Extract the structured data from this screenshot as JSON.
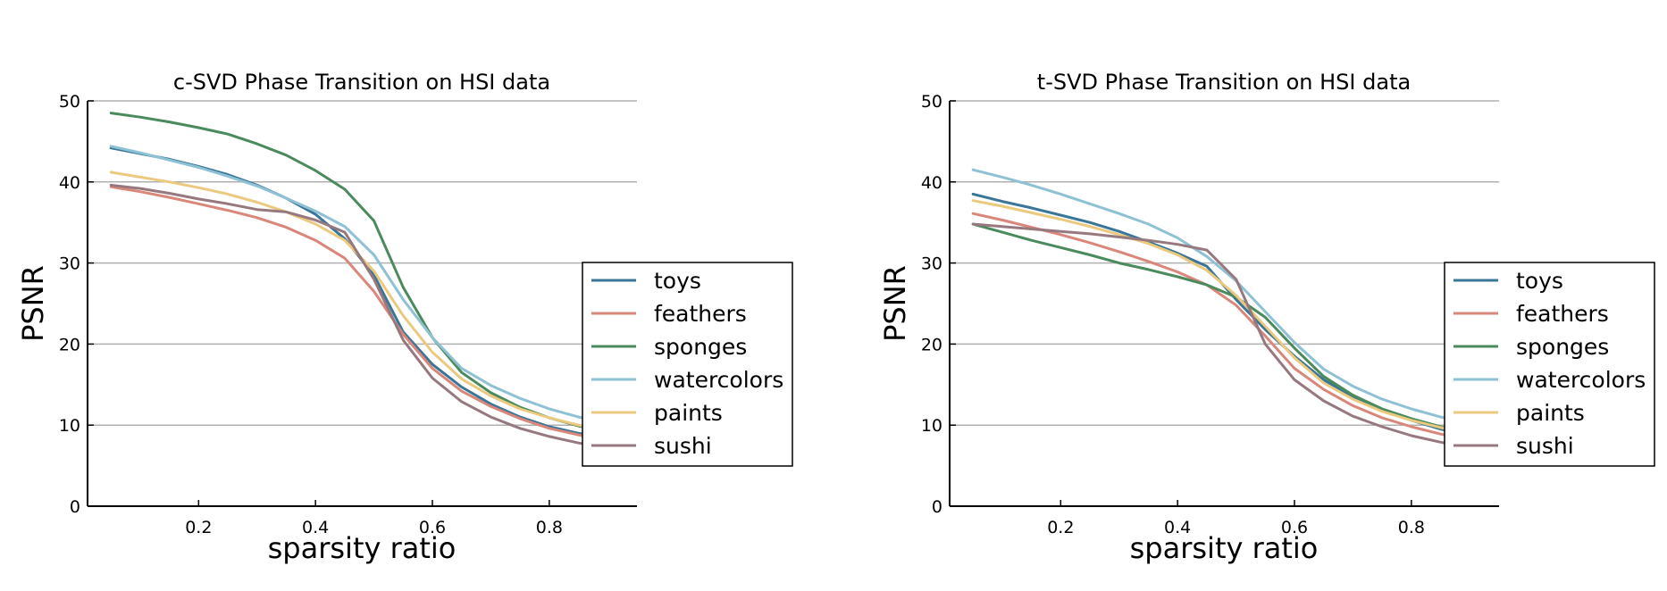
{
  "colors": {
    "toys": "#3a7697",
    "feathers": "#d9877a",
    "sponges": "#4a8a5c",
    "watercolors": "#8fc1d4",
    "paints": "#ebc97e",
    "sushi": "#97787f"
  },
  "chart_data": [
    {
      "type": "line",
      "title": "c-SVD Phase Transition on HSI data",
      "xlabel": "sparsity ratio",
      "ylabel": "PSNR",
      "xlim": [
        0.01,
        0.95
      ],
      "ylim": [
        0,
        50
      ],
      "xticks": [
        0.2,
        0.4,
        0.6,
        0.8
      ],
      "xtick_labels": [
        "0.2",
        "0.4",
        "0.6",
        "0.8"
      ],
      "yticks": [
        0,
        10,
        20,
        30,
        40,
        50
      ],
      "ytick_labels": [
        "0",
        "10",
        "20",
        "30",
        "40",
        "50"
      ],
      "grid": "horizontal",
      "legend_position": "right",
      "x": [
        0.05,
        0.1,
        0.15,
        0.2,
        0.25,
        0.3,
        0.35,
        0.4,
        0.45,
        0.5,
        0.55,
        0.6,
        0.65,
        0.7,
        0.75,
        0.8,
        0.85,
        0.9
      ],
      "series": [
        {
          "name": "toys",
          "values": [
            44.2,
            43.5,
            42.8,
            41.9,
            40.9,
            39.6,
            38.0,
            36.0,
            33.0,
            28.5,
            21.5,
            17.5,
            14.7,
            12.6,
            11.0,
            9.8,
            9.0,
            8.4
          ]
        },
        {
          "name": "feathers",
          "values": [
            39.4,
            38.8,
            38.1,
            37.3,
            36.5,
            35.6,
            34.4,
            32.8,
            30.6,
            26.5,
            21.2,
            17.0,
            14.2,
            12.3,
            10.8,
            9.6,
            8.8,
            8.1
          ]
        },
        {
          "name": "sponges",
          "values": [
            48.5,
            48.0,
            47.4,
            46.7,
            45.9,
            44.7,
            43.3,
            41.4,
            39.1,
            35.2,
            27.0,
            20.8,
            16.5,
            14.0,
            12.2,
            10.9,
            9.9,
            9.2
          ]
        },
        {
          "name": "watercolors",
          "values": [
            44.4,
            43.6,
            42.7,
            41.8,
            40.7,
            39.5,
            38.0,
            36.4,
            34.5,
            31.0,
            25.5,
            20.8,
            17.0,
            14.9,
            13.3,
            12.0,
            11.0,
            10.3
          ]
        },
        {
          "name": "paints",
          "values": [
            41.2,
            40.6,
            40.0,
            39.3,
            38.5,
            37.5,
            36.3,
            34.8,
            32.8,
            29.0,
            23.5,
            19.0,
            15.7,
            13.6,
            12.0,
            10.9,
            10.0,
            9.3
          ]
        },
        {
          "name": "sushi",
          "values": [
            39.6,
            39.2,
            38.6,
            37.9,
            37.3,
            36.6,
            36.3,
            35.3,
            33.8,
            28.0,
            20.5,
            15.8,
            12.9,
            11.0,
            9.6,
            8.6,
            7.8,
            7.2
          ]
        }
      ]
    },
    {
      "type": "line",
      "title": "t-SVD Phase Transition on HSI data",
      "xlabel": "sparsity ratio",
      "ylabel": "PSNR",
      "xlim": [
        0.01,
        0.95
      ],
      "ylim": [
        0,
        50
      ],
      "xticks": [
        0.2,
        0.4,
        0.6,
        0.8
      ],
      "xtick_labels": [
        "0.2",
        "0.4",
        "0.6",
        "0.8"
      ],
      "yticks": [
        0,
        10,
        20,
        30,
        40,
        50
      ],
      "ytick_labels": [
        "0",
        "10",
        "20",
        "30",
        "40",
        "50"
      ],
      "grid": "horizontal",
      "legend_position": "right",
      "x": [
        0.05,
        0.1,
        0.15,
        0.2,
        0.25,
        0.3,
        0.35,
        0.4,
        0.45,
        0.5,
        0.55,
        0.6,
        0.65,
        0.7,
        0.75,
        0.8,
        0.85,
        0.9
      ],
      "series": [
        {
          "name": "toys",
          "values": [
            38.5,
            37.6,
            36.8,
            35.9,
            35.0,
            33.9,
            32.6,
            31.2,
            29.6,
            25.5,
            21.8,
            18.5,
            15.6,
            13.5,
            11.9,
            10.6,
            9.5,
            8.7
          ]
        },
        {
          "name": "feathers",
          "values": [
            36.1,
            35.3,
            34.4,
            33.5,
            32.5,
            31.4,
            30.2,
            28.9,
            27.3,
            24.8,
            21.0,
            17.0,
            14.4,
            12.4,
            10.9,
            9.8,
            8.9,
            8.2
          ]
        },
        {
          "name": "sponges",
          "values": [
            34.8,
            33.8,
            32.8,
            31.9,
            31.0,
            30.0,
            29.2,
            28.3,
            27.3,
            25.8,
            23.3,
            19.5,
            16.0,
            13.7,
            12.0,
            10.8,
            9.8,
            9.0
          ]
        },
        {
          "name": "watercolors",
          "values": [
            41.5,
            40.6,
            39.6,
            38.5,
            37.3,
            36.1,
            34.8,
            33.1,
            30.8,
            27.8,
            24.0,
            20.2,
            16.9,
            14.8,
            13.2,
            12.0,
            11.0,
            10.3
          ]
        },
        {
          "name": "paints",
          "values": [
            37.7,
            37.0,
            36.2,
            35.4,
            34.5,
            33.5,
            32.4,
            31.0,
            29.1,
            26.0,
            22.2,
            18.3,
            15.2,
            13.2,
            11.7,
            10.6,
            9.7,
            9.0
          ]
        },
        {
          "name": "sushi",
          "values": [
            34.8,
            34.5,
            34.2,
            33.9,
            33.6,
            33.2,
            32.8,
            32.3,
            31.6,
            28.0,
            20.0,
            15.6,
            13.0,
            11.1,
            9.8,
            8.7,
            7.9,
            7.2
          ]
        }
      ]
    }
  ]
}
